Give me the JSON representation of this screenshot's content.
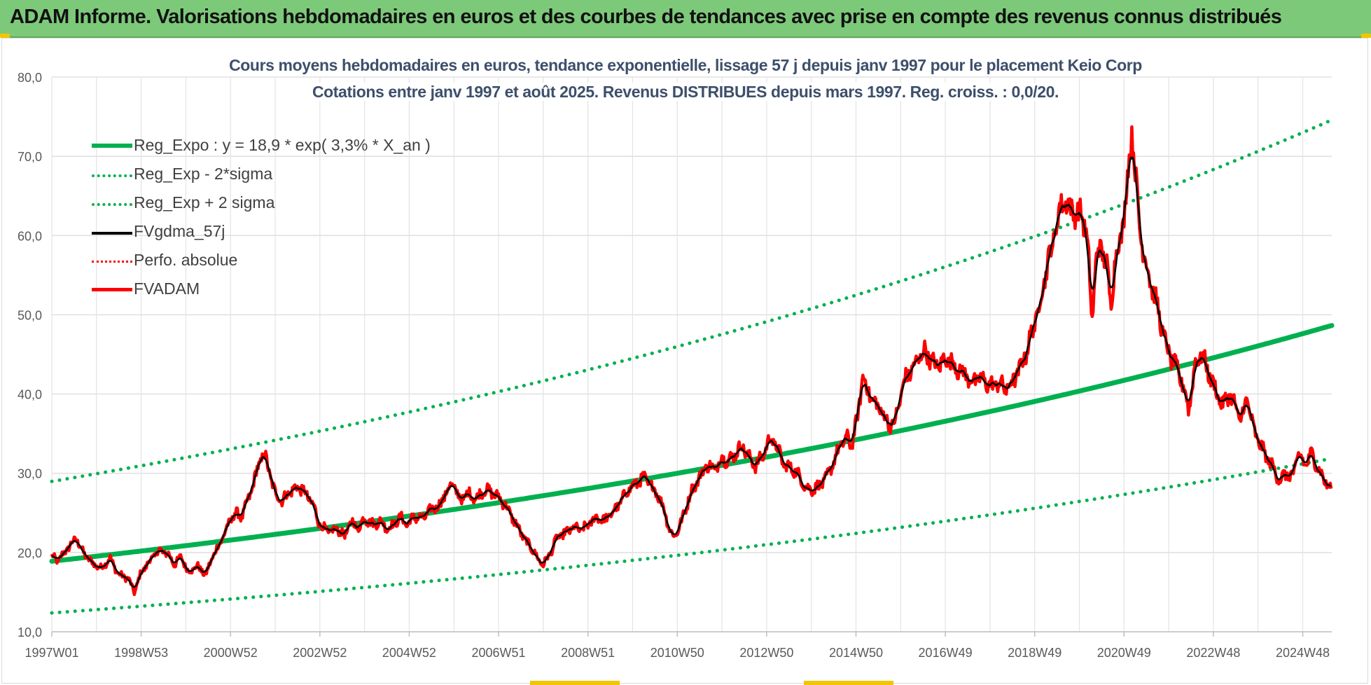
{
  "header": {
    "title": "ADAM Informe. Valorisations hebdomadaires en euros et des courbes de tendances avec prise en compte des revenus connus distribués"
  },
  "chart_data": {
    "type": "line",
    "title": "Cours moyens hebdomadaires en euros, tendance exponentielle, lissage 57 j depuis janv 1997 pour le placement Keio Corp",
    "subtitle": "Cotations entre janv 1997 et août 2025.  Revenus DISTRIBUES depuis mars 1997. Reg. croiss. : 0,0/20.",
    "xlabel": "",
    "ylabel": "",
    "ylim": [
      10,
      80
    ],
    "yticks": [
      "10,0",
      "20,0",
      "30,0",
      "40,0",
      "50,0",
      "60,0",
      "70,0",
      "80,0"
    ],
    "x_range_years": [
      1997.0,
      2025.65
    ],
    "xtick_labels": [
      "1997W01",
      "1998W53",
      "2000W52",
      "2002W52",
      "2004W52",
      "2006W51",
      "2008W51",
      "2010W50",
      "2012W50",
      "2014W50",
      "2016W49",
      "2018W49",
      "2020W49",
      "2022W48",
      "2024W48"
    ],
    "xtick_years": [
      1997.0,
      1999.0,
      2001.0,
      2003.0,
      2005.0,
      2007.0,
      2009.0,
      2011.0,
      2013.0,
      2015.0,
      2017.0,
      2019.0,
      2021.0,
      2023.0,
      2025.0
    ],
    "grid": true,
    "legend_position": "top-left",
    "regression": {
      "a": 18.9,
      "rate": 0.033,
      "sigma_factor": 0.423
    },
    "series": [
      {
        "name": "Reg_Expo : y = 18,9 * exp( 3,3% *  X_an )",
        "style": "solid-thick",
        "color": "#00b050",
        "kind": "reg_expo"
      },
      {
        "name": "Reg_Exp - 2*sigma",
        "style": "dotted",
        "color": "#00b050",
        "kind": "reg_minus"
      },
      {
        "name": "Reg_Exp + 2 sigma",
        "style": "dotted",
        "color": "#00b050",
        "kind": "reg_plus"
      },
      {
        "name": "FVgdma_57j",
        "style": "solid",
        "color": "#000000",
        "kind": "smoothed"
      },
      {
        "name": "Perfo. absolue",
        "style": "dotted",
        "color": "#ff0000",
        "kind": "perfo"
      },
      {
        "name": "FVADAM",
        "style": "solid-thick",
        "color": "#ff0000",
        "kind": "price"
      }
    ],
    "price_points": [
      [
        1997.0,
        19.5
      ],
      [
        1997.15,
        19.0
      ],
      [
        1997.35,
        20.5
      ],
      [
        1997.55,
        21.8
      ],
      [
        1997.7,
        20.0
      ],
      [
        1997.9,
        18.7
      ],
      [
        1998.1,
        18.0
      ],
      [
        1998.3,
        19.3
      ],
      [
        1998.5,
        17.2
      ],
      [
        1998.7,
        16.8
      ],
      [
        1998.85,
        15.0
      ],
      [
        1999.0,
        17.5
      ],
      [
        1999.2,
        19.0
      ],
      [
        1999.4,
        20.3
      ],
      [
        1999.6,
        19.8
      ],
      [
        1999.75,
        18.5
      ],
      [
        1999.9,
        19.5
      ],
      [
        2000.05,
        17.5
      ],
      [
        2000.25,
        18.3
      ],
      [
        2000.45,
        17.2
      ],
      [
        2000.6,
        19.5
      ],
      [
        2000.75,
        21.0
      ],
      [
        2000.95,
        23.5
      ],
      [
        2001.1,
        25.0
      ],
      [
        2001.25,
        24.5
      ],
      [
        2001.45,
        27.5
      ],
      [
        2001.6,
        30.5
      ],
      [
        2001.75,
        32.7
      ],
      [
        2001.85,
        30.5
      ],
      [
        2002.0,
        27.5
      ],
      [
        2002.15,
        26.5
      ],
      [
        2002.3,
        27.5
      ],
      [
        2002.5,
        28.3
      ],
      [
        2002.65,
        27.7
      ],
      [
        2002.85,
        26.0
      ],
      [
        2003.0,
        23.5
      ],
      [
        2003.2,
        22.5
      ],
      [
        2003.4,
        23.0
      ],
      [
        2003.55,
        22.0
      ],
      [
        2003.7,
        24.0
      ],
      [
        2003.85,
        23.0
      ],
      [
        2004.0,
        24.3
      ],
      [
        2004.2,
        23.5
      ],
      [
        2004.35,
        24.0
      ],
      [
        2004.5,
        23.0
      ],
      [
        2004.65,
        23.5
      ],
      [
        2004.8,
        24.5
      ],
      [
        2004.95,
        23.5
      ],
      [
        2005.1,
        24.5
      ],
      [
        2005.3,
        24.3
      ],
      [
        2005.5,
        25.5
      ],
      [
        2005.7,
        26.0
      ],
      [
        2005.85,
        28.0
      ],
      [
        2006.0,
        28.5
      ],
      [
        2006.15,
        26.5
      ],
      [
        2006.3,
        27.5
      ],
      [
        2006.5,
        26.8
      ],
      [
        2006.7,
        28.0
      ],
      [
        2006.85,
        27.5
      ],
      [
        2007.0,
        27.0
      ],
      [
        2007.15,
        26.0
      ],
      [
        2007.3,
        24.5
      ],
      [
        2007.45,
        23.0
      ],
      [
        2007.6,
        21.5
      ],
      [
        2007.75,
        20.5
      ],
      [
        2007.9,
        19.0
      ],
      [
        2008.0,
        18.5
      ],
      [
        2008.15,
        19.8
      ],
      [
        2008.3,
        21.8
      ],
      [
        2008.5,
        22.5
      ],
      [
        2008.7,
        23.2
      ],
      [
        2008.85,
        22.8
      ],
      [
        2009.0,
        23.5
      ],
      [
        2009.2,
        24.5
      ],
      [
        2009.35,
        24.0
      ],
      [
        2009.55,
        25.0
      ],
      [
        2009.75,
        26.5
      ],
      [
        2009.9,
        28.0
      ],
      [
        2010.05,
        28.5
      ],
      [
        2010.25,
        29.5
      ],
      [
        2010.4,
        28.5
      ],
      [
        2010.55,
        27.5
      ],
      [
        2010.7,
        25.5
      ],
      [
        2010.85,
        22.5
      ],
      [
        2010.95,
        22.0
      ],
      [
        2011.1,
        24.0
      ],
      [
        2011.3,
        27.5
      ],
      [
        2011.5,
        29.5
      ],
      [
        2011.65,
        31.0
      ],
      [
        2011.85,
        30.5
      ],
      [
        2012.0,
        32.0
      ],
      [
        2012.15,
        31.5
      ],
      [
        2012.3,
        32.5
      ],
      [
        2012.45,
        33.5
      ],
      [
        2012.6,
        32.0
      ],
      [
        2012.75,
        31.0
      ],
      [
        2012.9,
        32.0
      ],
      [
        2013.0,
        33.5
      ],
      [
        2013.1,
        34.5
      ],
      [
        2013.25,
        33.0
      ],
      [
        2013.4,
        31.0
      ],
      [
        2013.6,
        30.5
      ],
      [
        2013.75,
        29.5
      ],
      [
        2013.9,
        28.0
      ],
      [
        2014.05,
        28.0
      ],
      [
        2014.2,
        28.5
      ],
      [
        2014.35,
        29.5
      ],
      [
        2014.5,
        31.5
      ],
      [
        2014.65,
        33.5
      ],
      [
        2014.8,
        34.5
      ],
      [
        2014.9,
        33.5
      ],
      [
        2015.05,
        37.5
      ],
      [
        2015.15,
        42.5
      ],
      [
        2015.25,
        40.5
      ],
      [
        2015.4,
        39.0
      ],
      [
        2015.55,
        38.0
      ],
      [
        2015.7,
        36.5
      ],
      [
        2015.85,
        36.0
      ],
      [
        2015.95,
        38.5
      ],
      [
        2016.1,
        42.0
      ],
      [
        2016.25,
        43.0
      ],
      [
        2016.4,
        44.5
      ],
      [
        2016.55,
        45.5
      ],
      [
        2016.7,
        44.0
      ],
      [
        2016.85,
        43.5
      ],
      [
        2017.0,
        44.5
      ],
      [
        2017.15,
        44.0
      ],
      [
        2017.3,
        43.0
      ],
      [
        2017.45,
        42.5
      ],
      [
        2017.6,
        41.5
      ],
      [
        2017.75,
        42.0
      ],
      [
        2017.9,
        41.5
      ],
      [
        2018.05,
        41.0
      ],
      [
        2018.2,
        41.5
      ],
      [
        2018.35,
        40.5
      ],
      [
        2018.5,
        41.5
      ],
      [
        2018.65,
        43.0
      ],
      [
        2018.8,
        45.0
      ],
      [
        2018.95,
        48.0
      ],
      [
        2019.1,
        51.0
      ],
      [
        2019.25,
        55.5
      ],
      [
        2019.4,
        59.0
      ],
      [
        2019.55,
        63.0
      ],
      [
        2019.65,
        64.5
      ],
      [
        2019.8,
        63.5
      ],
      [
        2019.95,
        62.5
      ],
      [
        2020.05,
        63.0
      ],
      [
        2020.15,
        60.5
      ],
      [
        2020.22,
        56.0
      ],
      [
        2020.28,
        49.0
      ],
      [
        2020.38,
        57.5
      ],
      [
        2020.5,
        58.5
      ],
      [
        2020.62,
        56.0
      ],
      [
        2020.7,
        51.0
      ],
      [
        2020.8,
        57.0
      ],
      [
        2020.92,
        59.5
      ],
      [
        2021.02,
        63.5
      ],
      [
        2021.1,
        68.5
      ],
      [
        2021.18,
        73.5
      ],
      [
        2021.25,
        68.0
      ],
      [
        2021.35,
        61.0
      ],
      [
        2021.45,
        57.5
      ],
      [
        2021.6,
        54.0
      ],
      [
        2021.75,
        51.0
      ],
      [
        2021.9,
        47.0
      ],
      [
        2022.05,
        44.5
      ],
      [
        2022.2,
        43.0
      ],
      [
        2022.35,
        40.5
      ],
      [
        2022.45,
        38.0
      ],
      [
        2022.6,
        44.0
      ],
      [
        2022.75,
        45.0
      ],
      [
        2022.9,
        42.5
      ],
      [
        2023.05,
        40.5
      ],
      [
        2023.2,
        38.5
      ],
      [
        2023.35,
        40.0
      ],
      [
        2023.5,
        38.5
      ],
      [
        2023.6,
        36.5
      ],
      [
        2023.75,
        39.5
      ],
      [
        2023.9,
        35.5
      ],
      [
        2024.05,
        33.5
      ],
      [
        2024.2,
        32.0
      ],
      [
        2024.35,
        30.5
      ],
      [
        2024.5,
        29.0
      ],
      [
        2024.6,
        30.0
      ],
      [
        2024.7,
        29.5
      ],
      [
        2024.8,
        30.0
      ],
      [
        2024.9,
        32.5
      ],
      [
        2025.05,
        31.0
      ],
      [
        2025.2,
        32.5
      ],
      [
        2025.35,
        30.5
      ],
      [
        2025.5,
        29.0
      ],
      [
        2025.65,
        27.8
      ]
    ]
  }
}
